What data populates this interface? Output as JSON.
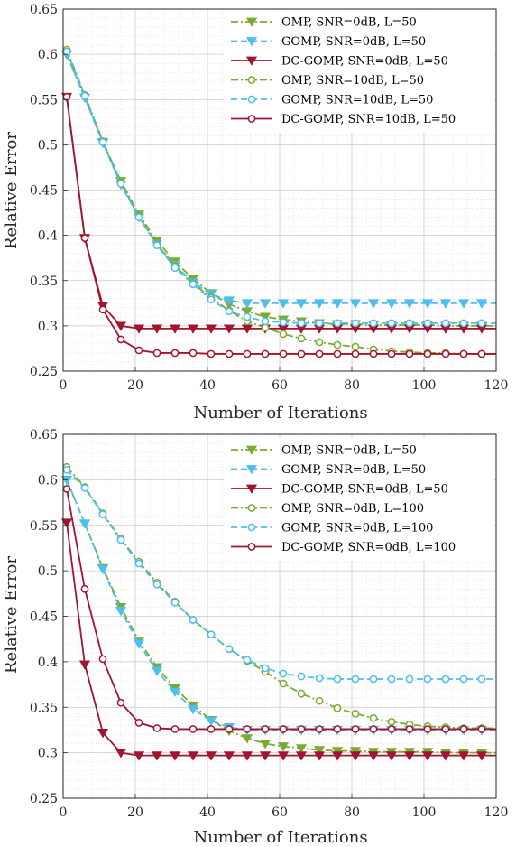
{
  "chart_data": [
    {
      "type": "line",
      "title": "",
      "xlabel": "Number of Iterations",
      "ylabel": "Relative Error",
      "xlim": [
        0,
        120
      ],
      "ylim": [
        0.25,
        0.65
      ],
      "xticks": [
        "0",
        "20",
        "40",
        "60",
        "80",
        "100",
        "120"
      ],
      "yticks": [
        "0.25",
        "0.3",
        "0.35",
        "0.4",
        "0.45",
        "0.5",
        "0.55",
        "0.6",
        "0.65"
      ],
      "grid": true,
      "minor_grid": true,
      "legend_position": "top-right",
      "series": [
        {
          "name": "OMP, SNR=0dB, L=50",
          "color": "#77ac30",
          "dash": "dashdot",
          "marker": "triangle-down-filled",
          "x": [
            1,
            6,
            11,
            16,
            21,
            26,
            31,
            36,
            41,
            46,
            51,
            56,
            61,
            66,
            71,
            76,
            81,
            86,
            91,
            96,
            101,
            106,
            111,
            116,
            120
          ],
          "y": [
            0.6,
            0.552,
            0.503,
            0.46,
            0.423,
            0.394,
            0.371,
            0.352,
            0.336,
            0.324,
            0.316,
            0.31,
            0.307,
            0.305,
            0.303,
            0.302,
            0.302,
            0.301,
            0.301,
            0.301,
            0.301,
            0.3,
            0.3,
            0.3,
            0.3
          ]
        },
        {
          "name": "GOMP, SNR=0dB, L=50",
          "color": "#4dbeee",
          "dash": "dashed",
          "marker": "triangle-down-filled",
          "x": [
            1,
            6,
            11,
            16,
            21,
            26,
            31,
            36,
            41,
            46,
            51,
            56,
            61,
            66,
            71,
            76,
            81,
            86,
            91,
            96,
            101,
            106,
            111,
            116,
            120
          ],
          "y": [
            0.6,
            0.552,
            0.502,
            0.456,
            0.42,
            0.39,
            0.367,
            0.348,
            0.335,
            0.328,
            0.325,
            0.325,
            0.325,
            0.325,
            0.325,
            0.325,
            0.325,
            0.325,
            0.325,
            0.325,
            0.325,
            0.325,
            0.325,
            0.325,
            0.325
          ]
        },
        {
          "name": "DC-GOMP, SNR=0dB, L=50",
          "color": "#a2142f",
          "dash": "solid",
          "marker": "triangle-down-filled",
          "x": [
            1,
            6,
            11,
            16,
            21,
            26,
            31,
            36,
            41,
            46,
            51,
            56,
            61,
            66,
            71,
            76,
            81,
            86,
            91,
            96,
            101,
            106,
            111,
            116,
            120
          ],
          "y": [
            0.553,
            0.397,
            0.322,
            0.3,
            0.297,
            0.297,
            0.297,
            0.297,
            0.297,
            0.297,
            0.297,
            0.297,
            0.297,
            0.297,
            0.297,
            0.297,
            0.297,
            0.297,
            0.297,
            0.297,
            0.297,
            0.297,
            0.297,
            0.297,
            0.297
          ]
        },
        {
          "name": "OMP, SNR=10dB, L=50",
          "color": "#77ac30",
          "dash": "dashdot",
          "marker": "circle-open",
          "x": [
            1,
            6,
            11,
            16,
            21,
            26,
            31,
            36,
            41,
            46,
            51,
            56,
            61,
            66,
            71,
            76,
            81,
            86,
            91,
            96,
            101,
            106,
            111,
            116,
            120
          ],
          "y": [
            0.605,
            0.555,
            0.504,
            0.458,
            0.421,
            0.39,
            0.366,
            0.347,
            0.331,
            0.317,
            0.305,
            0.298,
            0.291,
            0.286,
            0.282,
            0.279,
            0.277,
            0.274,
            0.272,
            0.271,
            0.27,
            0.27,
            0.269,
            0.269,
            0.269
          ]
        },
        {
          "name": "GOMP, SNR=10dB, L=50",
          "color": "#4dbeee",
          "dash": "dashed",
          "marker": "circle-open",
          "x": [
            1,
            6,
            11,
            16,
            21,
            26,
            31,
            36,
            41,
            46,
            51,
            56,
            61,
            66,
            71,
            76,
            81,
            86,
            91,
            96,
            101,
            106,
            111,
            116,
            120
          ],
          "y": [
            0.603,
            0.554,
            0.503,
            0.457,
            0.42,
            0.389,
            0.364,
            0.346,
            0.329,
            0.316,
            0.31,
            0.305,
            0.304,
            0.303,
            0.303,
            0.303,
            0.303,
            0.303,
            0.303,
            0.303,
            0.303,
            0.303,
            0.303,
            0.303,
            0.303
          ]
        },
        {
          "name": "DC-GOMP, SNR=10dB, L=50",
          "color": "#a2142f",
          "dash": "solid",
          "marker": "circle-open",
          "x": [
            1,
            6,
            11,
            16,
            21,
            26,
            31,
            36,
            41,
            46,
            51,
            56,
            61,
            66,
            71,
            76,
            81,
            86,
            91,
            96,
            101,
            106,
            111,
            116,
            120
          ],
          "y": [
            0.553,
            0.397,
            0.318,
            0.285,
            0.273,
            0.27,
            0.27,
            0.27,
            0.269,
            0.269,
            0.269,
            0.269,
            0.269,
            0.269,
            0.269,
            0.269,
            0.269,
            0.269,
            0.269,
            0.269,
            0.269,
            0.269,
            0.269,
            0.269,
            0.269
          ]
        }
      ]
    },
    {
      "type": "line",
      "title": "",
      "xlabel": "Number of Iterations",
      "ylabel": "Relative Error",
      "xlim": [
        0,
        120
      ],
      "ylim": [
        0.25,
        0.65
      ],
      "xticks": [
        "0",
        "20",
        "40",
        "60",
        "80",
        "100",
        "120"
      ],
      "yticks": [
        "0.25",
        "0.3",
        "0.35",
        "0.4",
        "0.45",
        "0.5",
        "0.55",
        "0.6",
        "0.65"
      ],
      "grid": true,
      "minor_grid": true,
      "legend_position": "top-right",
      "series": [
        {
          "name": "OMP, SNR=0dB, L=50",
          "color": "#77ac30",
          "dash": "dashdot",
          "marker": "triangle-down-filled",
          "x": [
            1,
            6,
            11,
            16,
            21,
            26,
            31,
            36,
            41,
            46,
            51,
            56,
            61,
            66,
            71,
            76,
            81,
            86,
            91,
            96,
            101,
            106,
            111,
            116,
            120
          ],
          "y": [
            0.6,
            0.552,
            0.503,
            0.46,
            0.423,
            0.394,
            0.371,
            0.352,
            0.336,
            0.324,
            0.316,
            0.31,
            0.307,
            0.305,
            0.303,
            0.302,
            0.302,
            0.301,
            0.301,
            0.301,
            0.301,
            0.3,
            0.3,
            0.3,
            0.3
          ]
        },
        {
          "name": "GOMP, SNR=0dB, L=50",
          "color": "#4dbeee",
          "dash": "dashed",
          "marker": "triangle-down-filled",
          "x": [
            1,
            6,
            11,
            16,
            21,
            26,
            31,
            36,
            41,
            46,
            51,
            56,
            61,
            66,
            71,
            76,
            81,
            86,
            91,
            96,
            101,
            106,
            111,
            116,
            120
          ],
          "y": [
            0.6,
            0.552,
            0.502,
            0.456,
            0.42,
            0.39,
            0.367,
            0.348,
            0.335,
            0.328,
            0.325,
            0.325,
            0.325,
            0.325,
            0.325,
            0.325,
            0.325,
            0.325,
            0.325,
            0.325,
            0.325,
            0.325,
            0.325,
            0.325,
            0.325
          ]
        },
        {
          "name": "DC-GOMP, SNR=0dB, L=50",
          "color": "#a2142f",
          "dash": "solid",
          "marker": "triangle-down-filled",
          "x": [
            1,
            6,
            11,
            16,
            21,
            26,
            31,
            36,
            41,
            46,
            51,
            56,
            61,
            66,
            71,
            76,
            81,
            86,
            91,
            96,
            101,
            106,
            111,
            116,
            120
          ],
          "y": [
            0.553,
            0.397,
            0.322,
            0.3,
            0.297,
            0.297,
            0.297,
            0.297,
            0.297,
            0.297,
            0.297,
            0.297,
            0.297,
            0.297,
            0.297,
            0.297,
            0.297,
            0.297,
            0.297,
            0.297,
            0.297,
            0.297,
            0.297,
            0.297,
            0.297
          ]
        },
        {
          "name": "OMP, SNR=0dB, L=100",
          "color": "#77ac30",
          "dash": "dashdot",
          "marker": "circle-open",
          "x": [
            1,
            6,
            11,
            16,
            21,
            26,
            31,
            36,
            41,
            46,
            51,
            56,
            61,
            66,
            71,
            76,
            81,
            86,
            91,
            96,
            101,
            106,
            111,
            116,
            120
          ],
          "y": [
            0.614,
            0.592,
            0.563,
            0.535,
            0.51,
            0.487,
            0.466,
            0.446,
            0.43,
            0.414,
            0.401,
            0.389,
            0.376,
            0.365,
            0.357,
            0.349,
            0.343,
            0.338,
            0.334,
            0.331,
            0.329,
            0.328,
            0.327,
            0.327,
            0.327
          ]
        },
        {
          "name": "GOMP, SNR=0dB, L=100",
          "color": "#4dbeee",
          "dash": "dashed",
          "marker": "circle-open",
          "x": [
            1,
            6,
            11,
            16,
            21,
            26,
            31,
            36,
            41,
            46,
            51,
            56,
            61,
            66,
            71,
            76,
            81,
            86,
            91,
            96,
            101,
            106,
            111,
            116,
            120
          ],
          "y": [
            0.611,
            0.591,
            0.562,
            0.534,
            0.508,
            0.485,
            0.465,
            0.446,
            0.43,
            0.414,
            0.402,
            0.393,
            0.387,
            0.384,
            0.382,
            0.381,
            0.381,
            0.381,
            0.381,
            0.381,
            0.381,
            0.381,
            0.381,
            0.381,
            0.381
          ]
        },
        {
          "name": "DC-GOMP, SNR=0dB, L=100",
          "color": "#a2142f",
          "dash": "solid",
          "marker": "circle-open",
          "x": [
            1,
            6,
            11,
            16,
            21,
            26,
            31,
            36,
            41,
            46,
            51,
            56,
            61,
            66,
            71,
            76,
            81,
            86,
            91,
            96,
            101,
            106,
            111,
            116,
            120
          ],
          "y": [
            0.59,
            0.48,
            0.403,
            0.355,
            0.333,
            0.327,
            0.326,
            0.326,
            0.326,
            0.326,
            0.326,
            0.326,
            0.326,
            0.326,
            0.326,
            0.326,
            0.326,
            0.326,
            0.326,
            0.326,
            0.326,
            0.326,
            0.326,
            0.326,
            0.326
          ]
        }
      ]
    }
  ]
}
